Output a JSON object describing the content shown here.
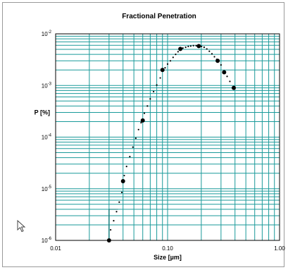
{
  "chart_data": {
    "type": "scatter",
    "title": "Fractional Penetration",
    "xlabel": "Size [µm]",
    "ylabel": "P [%]",
    "xscale": "log",
    "yscale": "log",
    "xlim": [
      0.01,
      1.0
    ],
    "ylim": [
      1e-06,
      0.01
    ],
    "grid": true,
    "x_tick_labels": [
      "0.01",
      "0.10",
      "1.00"
    ],
    "y_tick_labels": [
      {
        "base": "10",
        "exp": "-2"
      },
      {
        "base": "10",
        "exp": "-3"
      },
      {
        "base": "10",
        "exp": "-4"
      },
      {
        "base": "10",
        "exp": "-5"
      },
      {
        "base": "10",
        "exp": "-6"
      }
    ],
    "series": [
      {
        "marker": "large-dot",
        "x": [
          0.03,
          0.04,
          0.06,
          0.09,
          0.13,
          0.19,
          0.28,
          0.32,
          0.39
        ],
        "y": [
          1e-06,
          1.4e-05,
          0.00021,
          0.002,
          0.0051,
          0.0058,
          0.003,
          0.0018,
          0.0009
        ]
      },
      {
        "marker": "small-dot",
        "x": [
          0.031,
          0.033,
          0.035,
          0.037,
          0.039,
          0.041,
          0.043,
          0.046,
          0.049,
          0.052,
          0.055,
          0.058,
          0.062,
          0.066,
          0.07,
          0.075,
          0.08,
          0.086,
          0.095,
          0.1,
          0.106,
          0.112,
          0.118,
          0.124,
          0.137,
          0.145,
          0.153,
          0.161,
          0.17,
          0.18,
          0.201,
          0.212,
          0.224,
          0.236,
          0.249,
          0.262,
          0.275,
          0.3,
          0.34,
          0.36
        ],
        "y": [
          1.6e-06,
          2.4e-06,
          3.6e-06,
          5.5e-06,
          8.5e-06,
          1.8e-05,
          2.7e-05,
          4.2e-05,
          6.4e-05,
          9.5e-05,
          0.00014,
          0.00019,
          0.00029,
          0.0004,
          0.00055,
          0.00076,
          0.00102,
          0.0014,
          0.0022,
          0.0026,
          0.003,
          0.0035,
          0.004,
          0.0045,
          0.0053,
          0.0055,
          0.0057,
          0.0058,
          0.0059,
          0.0059,
          0.0057,
          0.0055,
          0.0051,
          0.0046,
          0.0041,
          0.0036,
          0.0032,
          0.0025,
          0.0015,
          0.0012
        ]
      }
    ],
    "drop_line_x": 0.03,
    "colors": {
      "grid": "#1a9a9a",
      "axis": "#000000",
      "marker": "#000000",
      "drop_line": "#1a7f7f"
    }
  },
  "icons": {
    "cursor": "mouse-pointer-icon"
  }
}
